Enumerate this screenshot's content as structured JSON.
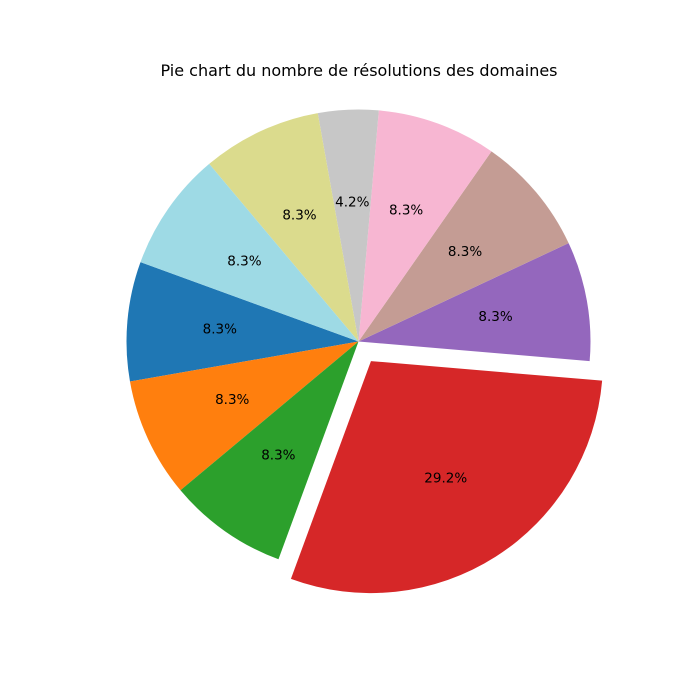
{
  "chart_data": {
    "type": "pie",
    "title": "Pie chart du nombre de résolutions des domaines",
    "start_angle_deg": 160,
    "direction": "counterclockwise",
    "slices": [
      {
        "value": 8.3,
        "label": "8.3%",
        "color": "#1f77b4",
        "exploded": false
      },
      {
        "value": 8.3,
        "label": "8.3%",
        "color": "#ff7f0e",
        "exploded": false
      },
      {
        "value": 8.3,
        "label": "8.3%",
        "color": "#2ca02c",
        "exploded": false
      },
      {
        "value": 29.2,
        "label": "29.2%",
        "color": "#d62728",
        "exploded": true
      },
      {
        "value": 8.3,
        "label": "8.3%",
        "color": "#9467bd",
        "exploded": false
      },
      {
        "value": 8.3,
        "label": "8.3%",
        "color": "#c49c94",
        "exploded": false
      },
      {
        "value": 8.3,
        "label": "8.3%",
        "color": "#f7b6d2",
        "exploded": false
      },
      {
        "value": 4.2,
        "label": "4.2%",
        "color": "#c7c7c7",
        "exploded": false
      },
      {
        "value": 8.3,
        "label": "8.3%",
        "color": "#dbdb8d",
        "exploded": false
      },
      {
        "value": 8.3,
        "label": "8.3%",
        "color": "#9edae5",
        "exploded": false
      }
    ]
  }
}
